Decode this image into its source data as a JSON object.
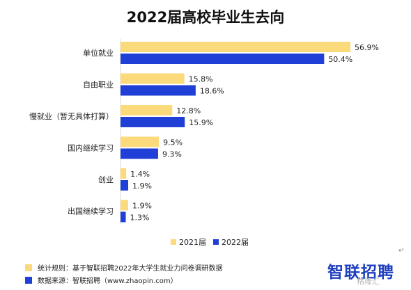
{
  "colors": {
    "series_2021": "#FADA7A",
    "series_2022": "#1F3FD6"
  },
  "footer": {
    "rule": "统计规则：基于智联招聘2022年大学生就业力问卷调研数据",
    "source": "数据来源：智联招聘（www.zhaopin.com）"
  },
  "logo_text": "智联招聘",
  "watermark": "格隆汇",
  "return_glyph": "↵",
  "chart_data": {
    "type": "bar",
    "orientation": "horizontal",
    "title": "2022届高校毕业生去向",
    "categories": [
      "单位就业",
      "自由职业",
      "慢就业（暂无具体打算）",
      "国内继续学习",
      "创业",
      "出国继续学习"
    ],
    "series": [
      {
        "name": "2021届",
        "values": [
          56.9,
          15.8,
          12.8,
          9.5,
          1.4,
          1.9
        ],
        "labels": [
          "56.9%",
          "15.8%",
          "12.8%",
          "9.5%",
          "1.4%",
          "1.9%"
        ]
      },
      {
        "name": "2022届",
        "values": [
          50.4,
          18.6,
          15.9,
          9.3,
          1.9,
          1.3
        ],
        "labels": [
          "50.4%",
          "18.6%",
          "15.9%",
          "9.3%",
          "1.9%",
          "1.3%"
        ]
      }
    ],
    "xlim": [
      0,
      60
    ],
    "grid": false,
    "legend_position": "bottom"
  }
}
